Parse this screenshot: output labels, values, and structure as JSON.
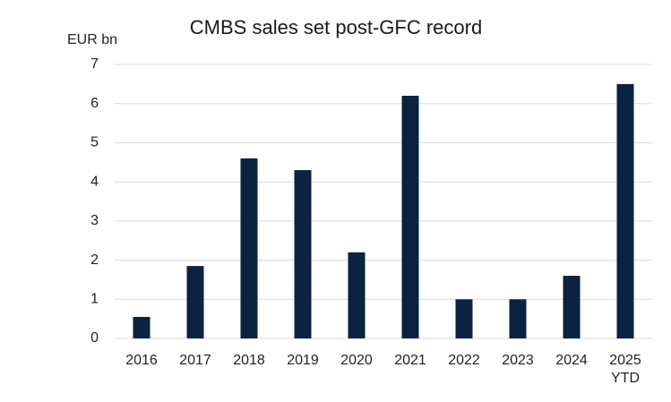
{
  "chart_data": {
    "type": "bar",
    "title": "CMBS sales set post-GFC record",
    "y_label": "EUR bn",
    "categories": [
      "2016",
      "2017",
      "2018",
      "2019",
      "2020",
      "2021",
      "2022",
      "2023",
      "2024",
      "2025 YTD"
    ],
    "values": [
      0.55,
      1.85,
      4.6,
      4.3,
      2.2,
      6.2,
      1.0,
      1.0,
      1.6,
      6.5
    ],
    "color": "#0b2240",
    "ylim": [
      0,
      7
    ],
    "yticks": [
      0,
      1,
      2,
      3,
      4,
      5,
      6,
      7
    ],
    "grid": true
  }
}
